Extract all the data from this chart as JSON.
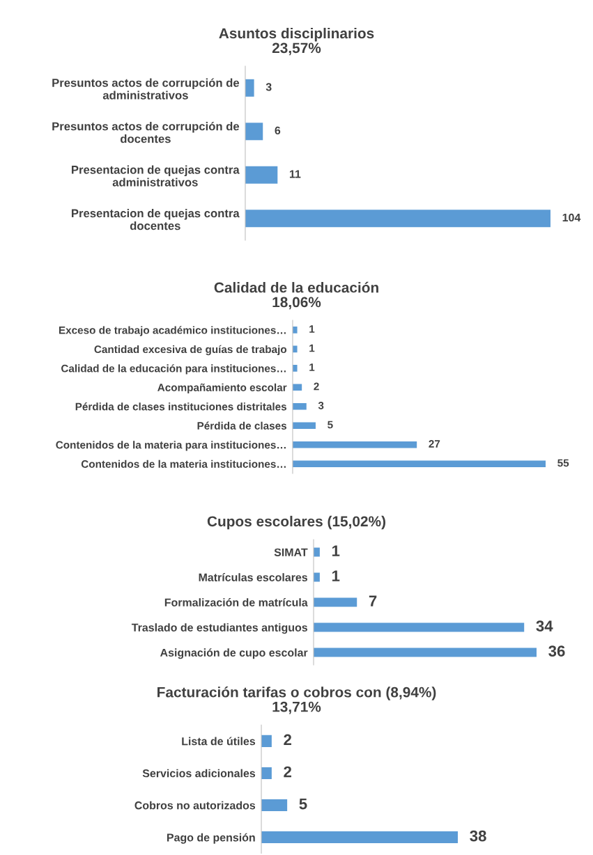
{
  "chart_data": [
    {
      "type": "bar",
      "orientation": "horizontal",
      "title": "Asuntos disciplinarios\n23,57%",
      "categories": [
        "Presuntos actos de corrupción de\nadministrativos",
        "Presuntos actos de corrupción de\ndocentes",
        "Presentacion de quejas contra\nadministrativos",
        "Presentacion de quejas contra\ndocentes"
      ],
      "values": [
        3,
        6,
        11,
        104
      ],
      "color": "#5b9bd5",
      "data_labels": true,
      "grid": false,
      "legend": false,
      "tick_labels": "y"
    },
    {
      "type": "bar",
      "orientation": "horizontal",
      "title": "Calidad de la educación\n18,06%",
      "categories": [
        "Exceso de trabajo académico instituciones…",
        "Cantidad excesiva de guías de trabajo",
        "Calidad de la educación para instituciones…",
        "Acompañamiento escolar",
        "Pérdida de clases instituciones distritales",
        "Pérdida de clases",
        "Contenidos de la materia para instituciones…",
        "Contenidos de la materia instituciones…"
      ],
      "values": [
        1,
        1,
        1,
        2,
        3,
        5,
        27,
        55
      ],
      "color": "#5b9bd5",
      "data_labels": true,
      "grid": false,
      "legend": false,
      "tick_labels": "y"
    },
    {
      "type": "bar",
      "orientation": "horizontal",
      "title": "Cupos escolares (15,02%)",
      "categories": [
        "SIMAT",
        "Matrículas escolares",
        "Formalización de matrícula",
        "Traslado de estudiantes antiguos",
        "Asignación de cupo escolar"
      ],
      "values": [
        1,
        1,
        7,
        34,
        36
      ],
      "color": "#5b9bd5",
      "data_labels": true,
      "grid": false,
      "legend": false,
      "tick_labels": "y"
    },
    {
      "type": "bar",
      "orientation": "horizontal",
      "title": "Facturación tarifas o cobros con (8,94%)\n13,71%",
      "categories": [
        "Lista de útiles",
        "Servicios adicionales",
        "Cobros no autorizados",
        "Pago de pensión"
      ],
      "values": [
        2,
        2,
        5,
        38
      ],
      "color": "#5b9bd5",
      "data_labels": true,
      "grid": false,
      "legend": false,
      "tick_labels": "y"
    }
  ]
}
